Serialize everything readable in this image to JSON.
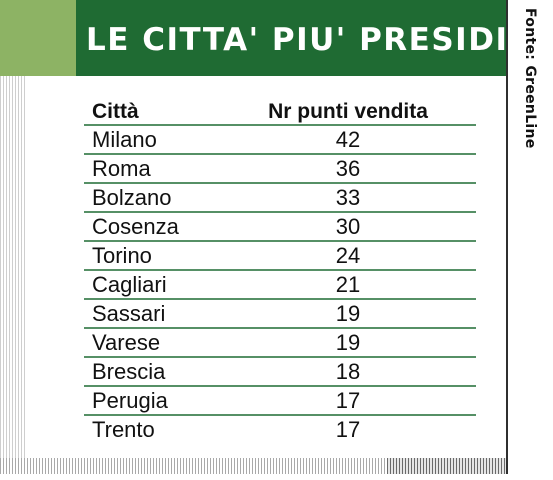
{
  "header": {
    "title": "LE CITTA' PIU' PRESIDIATE"
  },
  "source": "Fonte: GreenLine",
  "colors": {
    "header_green": "#1f6b33",
    "accent_green": "#8db364",
    "rule_green": "#1f6b33"
  },
  "chart_data": {
    "type": "table",
    "title": "LE CITTA' PIU' PRESIDIATE",
    "columns": [
      "Città",
      "Nr punti vendita"
    ],
    "categories": [
      "Milano",
      "Roma",
      "Bolzano",
      "Cosenza",
      "Torino",
      "Cagliari",
      "Sassari",
      "Varese",
      "Brescia",
      "Perugia",
      "Trento"
    ],
    "values": [
      42,
      36,
      33,
      30,
      24,
      21,
      19,
      19,
      18,
      17,
      17
    ]
  }
}
